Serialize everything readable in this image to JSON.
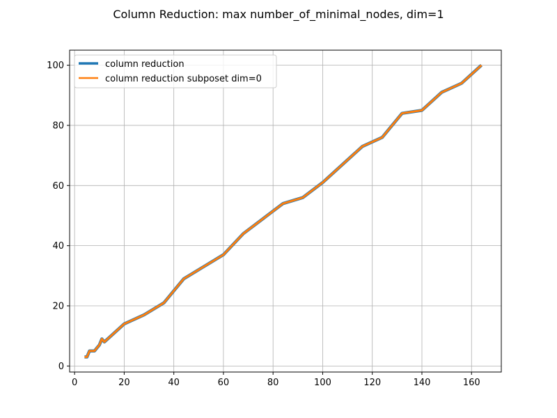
{
  "chart_data": {
    "type": "line",
    "title": "Column Reduction: max number_of_minimal_nodes, dim=1",
    "xlabel": "",
    "ylabel": "",
    "xlim": [
      -2.0,
      172.0
    ],
    "ylim": [
      -2.0,
      105.0
    ],
    "x_ticks": [
      0,
      20,
      40,
      60,
      80,
      100,
      120,
      140,
      160
    ],
    "y_ticks": [
      0,
      20,
      40,
      60,
      80,
      100
    ],
    "grid": true,
    "legend_position": "top-left",
    "series": [
      {
        "name": "column reduction",
        "color": "#1f77b4",
        "x": [
          4,
          5,
          6,
          7,
          8,
          9,
          10,
          11,
          12,
          20,
          28,
          36,
          44,
          52,
          60,
          68,
          76,
          84,
          92,
          100,
          108,
          116,
          124,
          132,
          140,
          148,
          156,
          164
        ],
        "y": [
          3,
          3,
          5,
          5,
          5,
          6,
          7,
          9,
          8,
          14,
          17,
          21,
          29,
          33,
          37,
          44,
          49,
          54,
          56,
          61,
          67,
          73,
          76,
          84,
          85,
          91,
          94,
          100
        ]
      },
      {
        "name": "column reduction subposet dim=0",
        "color": "#ff7f0e",
        "x": [
          4,
          5,
          6,
          7,
          8,
          9,
          10,
          11,
          12,
          20,
          28,
          36,
          44,
          52,
          60,
          68,
          76,
          84,
          92,
          100,
          108,
          116,
          124,
          132,
          140,
          148,
          156,
          164
        ],
        "y": [
          3,
          3,
          5,
          5,
          5,
          6,
          7,
          9,
          8,
          14,
          17,
          21,
          29,
          33,
          37,
          44,
          49,
          54,
          56,
          61,
          67,
          73,
          76,
          84,
          85,
          91,
          94,
          100
        ]
      }
    ]
  }
}
